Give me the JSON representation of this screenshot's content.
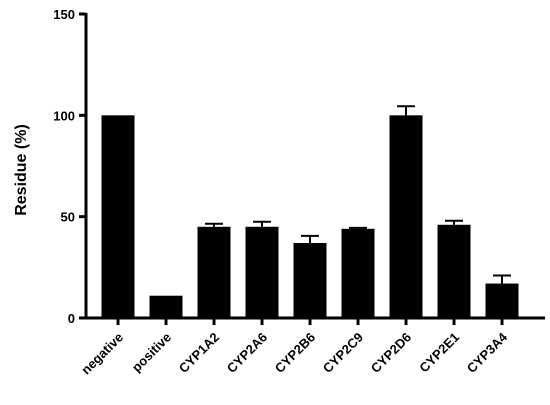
{
  "chart_data": {
    "type": "bar",
    "title": "",
    "xlabel": "",
    "ylabel": "Residue (%)",
    "ylim": [
      0,
      150
    ],
    "yticks": [
      0,
      50,
      100,
      150
    ],
    "grid": false,
    "legend": "none",
    "bar_color": "#000000",
    "categories": [
      "negative",
      "positive",
      "CYP1A2",
      "CYP2A6",
      "CYP2B6",
      "CYP2C9",
      "CYP2D6",
      "CYP2E1",
      "CYP3A4"
    ],
    "values": [
      100,
      11,
      45,
      45,
      37,
      44,
      100,
      46,
      17
    ],
    "errors": [
      0,
      0,
      1.5,
      2.5,
      3.5,
      0.5,
      4.5,
      2,
      4
    ]
  }
}
